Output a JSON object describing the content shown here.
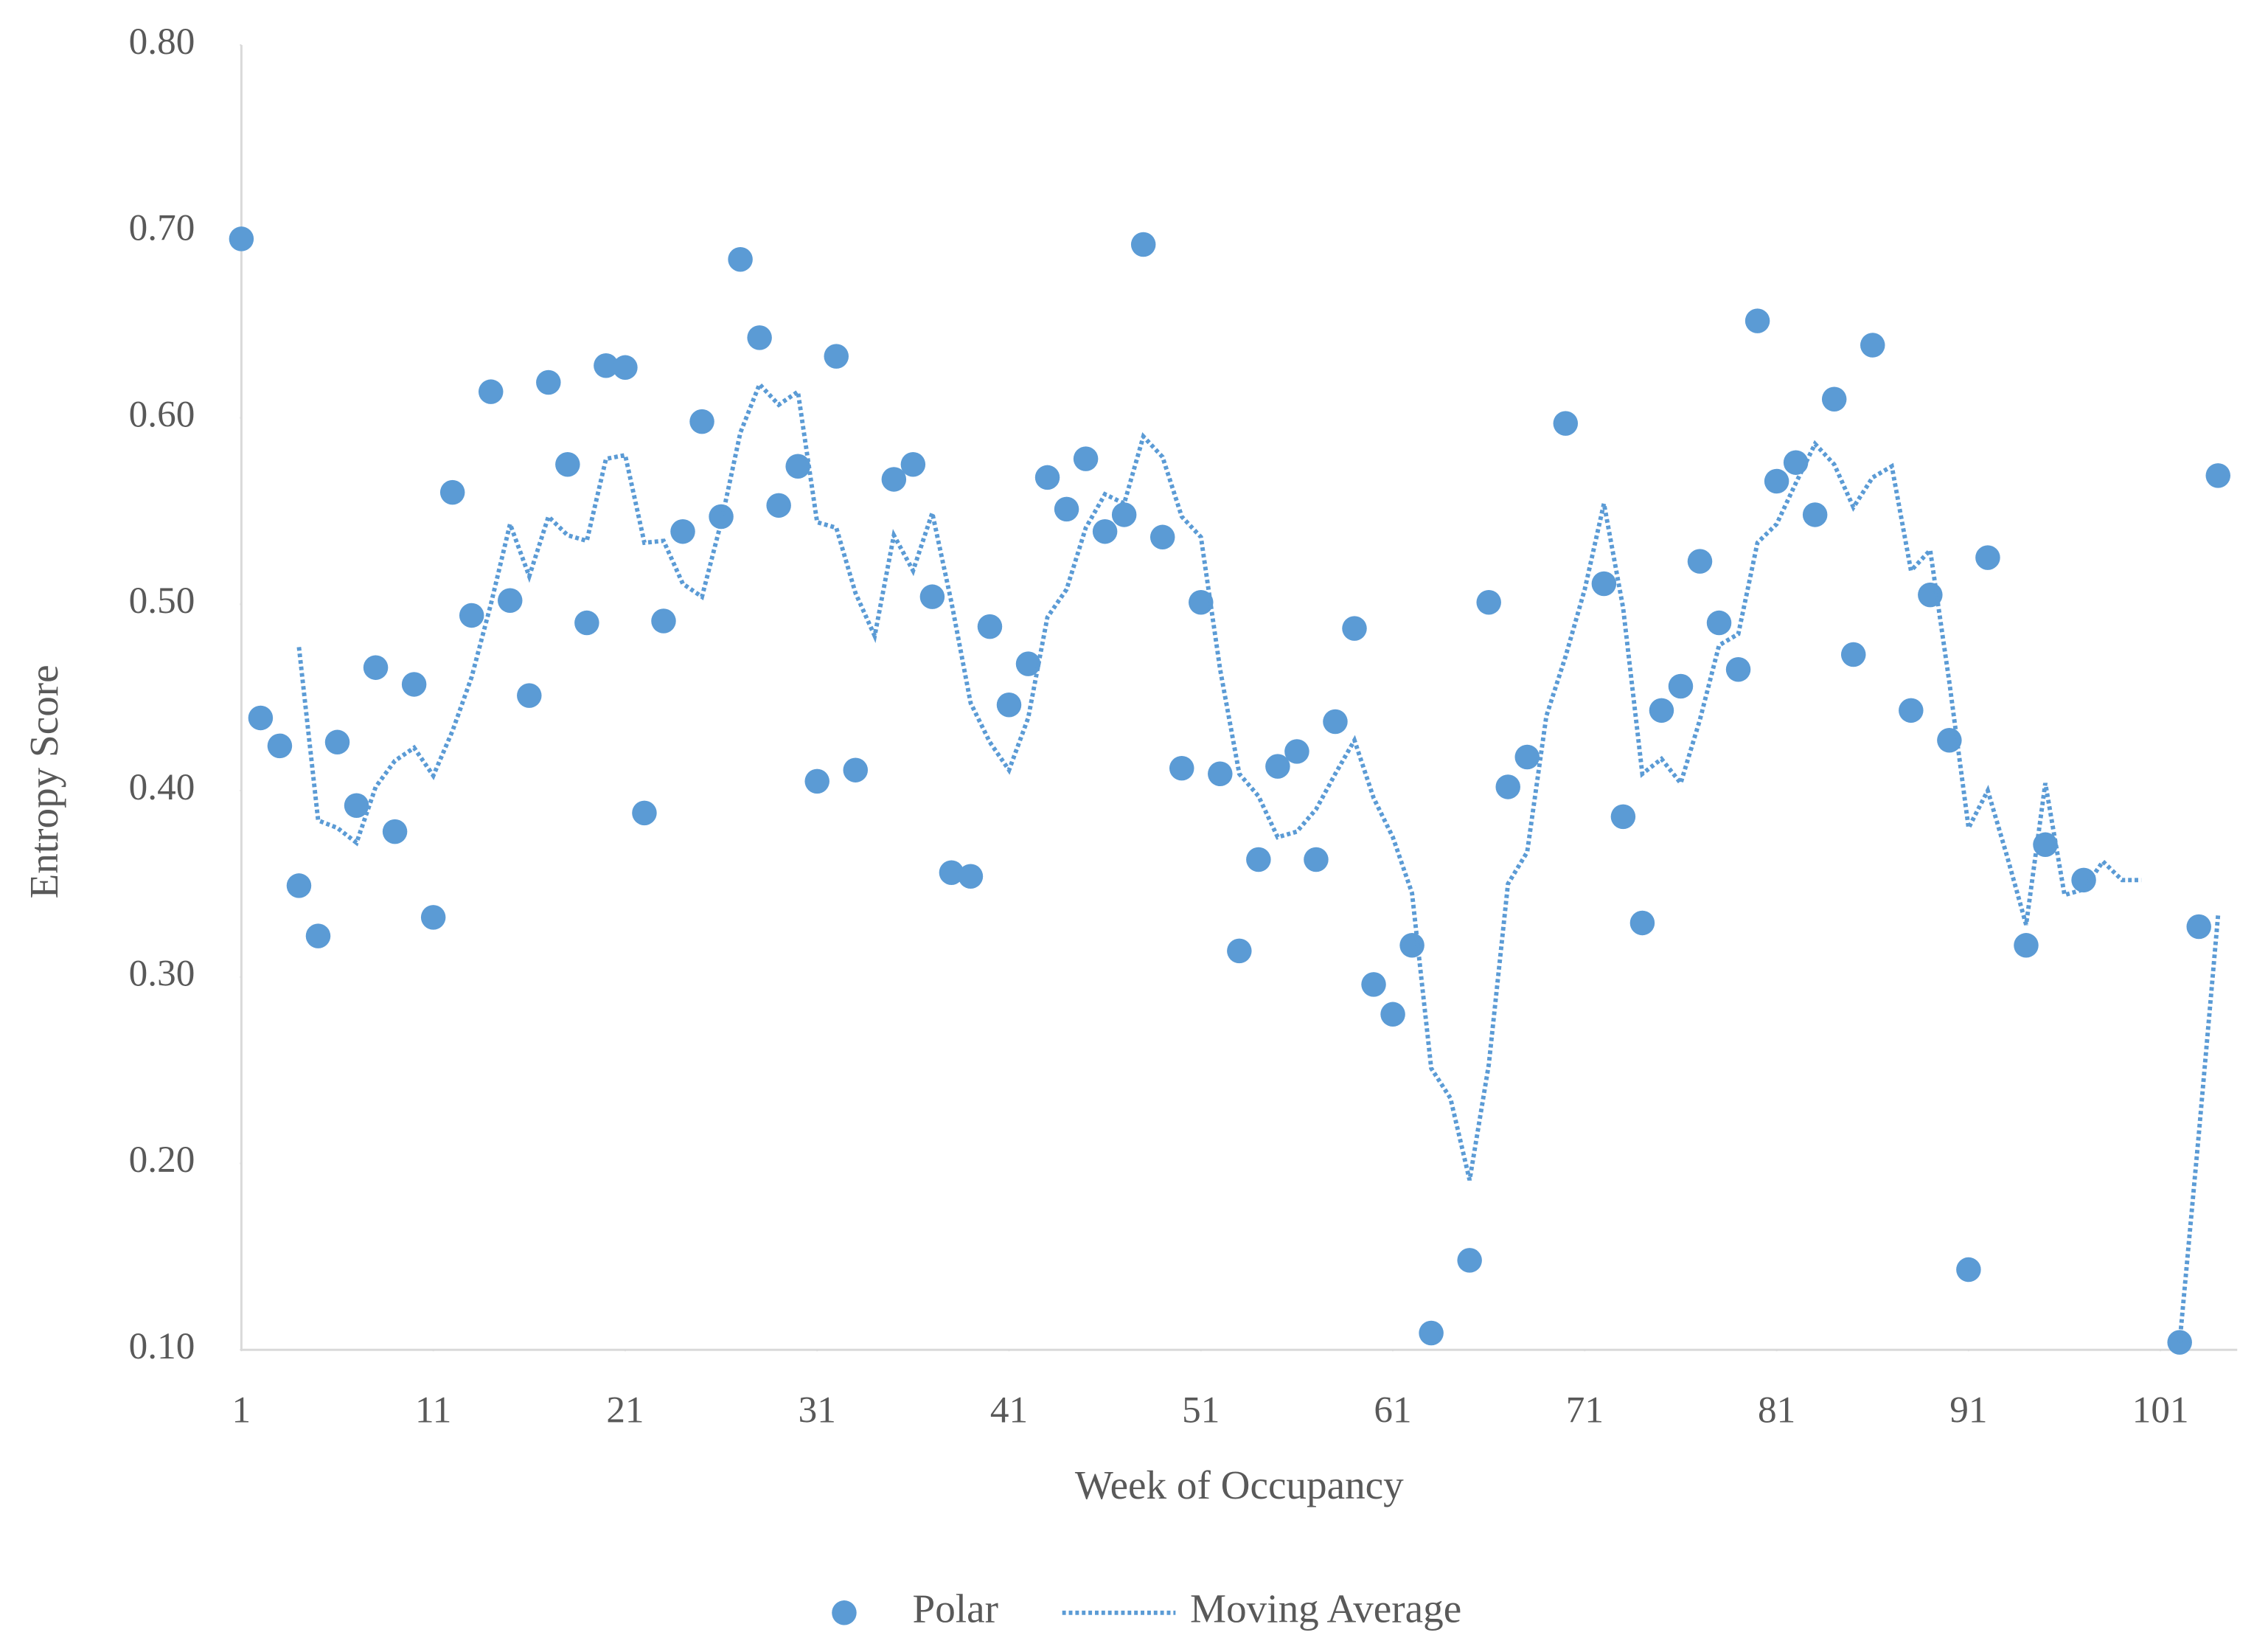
{
  "chart_data": {
    "type": "scatter",
    "x_label": "Week of Occupancy",
    "y_label": "Entropy Score",
    "x": [
      1,
      2,
      3,
      4,
      5,
      6,
      7,
      8,
      9,
      10,
      11,
      12,
      13,
      14,
      15,
      16,
      17,
      18,
      19,
      20,
      21,
      22,
      23,
      24,
      25,
      26,
      27,
      28,
      29,
      30,
      31,
      32,
      33,
      34,
      35,
      36,
      37,
      38,
      39,
      40,
      41,
      42,
      43,
      44,
      45,
      46,
      47,
      48,
      49,
      50,
      51,
      52,
      53,
      54,
      55,
      56,
      57,
      58,
      59,
      60,
      61,
      62,
      63,
      64,
      65,
      66,
      67,
      68,
      69,
      70,
      71,
      72,
      73,
      74,
      75,
      76,
      77,
      78,
      79,
      80,
      81,
      82,
      83,
      84,
      85,
      86,
      87,
      88,
      89,
      90,
      91,
      92,
      93,
      94,
      95,
      96,
      97,
      98,
      99,
      100,
      101,
      102,
      103,
      104
    ],
    "series": [
      {
        "name": "Polar",
        "kind": "scatter",
        "color": "#5b9bd5",
        "values": [
          0.696,
          0.439,
          0.424,
          0.349,
          0.322,
          0.426,
          0.392,
          0.466,
          0.378,
          0.457,
          0.332,
          0.56,
          0.494,
          0.614,
          0.502,
          0.451,
          0.619,
          0.575,
          0.49,
          0.628,
          0.627,
          0.388,
          0.491,
          0.539,
          0.598,
          0.547,
          0.685,
          0.643,
          0.553,
          0.574,
          0.405,
          0.633,
          0.411,
          null,
          0.567,
          0.575,
          0.504,
          0.356,
          0.354,
          0.488,
          0.446,
          0.468,
          0.568,
          0.551,
          0.578,
          0.539,
          0.548,
          0.693,
          0.536,
          0.412,
          0.501,
          0.409,
          0.314,
          0.363,
          0.413,
          0.421,
          0.363,
          0.437,
          0.487,
          0.296,
          0.28,
          0.317,
          0.109,
          null,
          0.148,
          0.501,
          0.402,
          0.418,
          null,
          0.597,
          null,
          0.511,
          0.386,
          0.329,
          0.443,
          0.456,
          0.523,
          0.49,
          0.465,
          0.652,
          0.566,
          0.576,
          0.548,
          0.61,
          0.473,
          0.639,
          null,
          0.443,
          0.505,
          0.427,
          0.143,
          0.525,
          null,
          0.317,
          0.371,
          null,
          0.352,
          null,
          null,
          null,
          null,
          0.104,
          0.327,
          0.569
        ]
      },
      {
        "name": "Moving Average",
        "kind": "line",
        "dash": "dotted",
        "color": "#5b9bd5",
        "values": [
          null,
          null,
          null,
          0.477,
          0.384,
          0.38,
          0.372,
          0.402,
          0.416,
          0.423,
          0.408,
          0.432,
          0.461,
          0.5,
          0.543,
          0.515,
          0.547,
          0.537,
          0.534,
          0.578,
          0.58,
          0.533,
          0.534,
          0.511,
          0.504,
          0.544,
          0.592,
          0.618,
          0.607,
          0.614,
          0.544,
          0.541,
          0.506,
          0.483,
          0.537,
          0.518,
          0.549,
          0.501,
          0.447,
          0.426,
          0.411,
          0.439,
          0.493,
          0.508,
          0.541,
          0.559,
          0.554,
          0.59,
          0.579,
          0.547,
          0.536,
          0.465,
          0.409,
          0.397,
          0.375,
          0.378,
          0.39,
          0.409,
          0.427,
          0.396,
          0.375,
          0.345,
          0.251,
          0.235,
          0.191,
          0.253,
          0.35,
          0.367,
          0.44,
          0.472,
          0.508,
          0.554,
          0.498,
          0.409,
          0.417,
          0.404,
          0.438,
          0.478,
          0.484,
          0.533,
          0.543,
          0.565,
          0.586,
          0.575,
          0.552,
          0.568,
          0.574,
          0.518,
          0.529,
          0.458,
          0.38,
          0.4,
          0.365,
          0.328,
          0.404,
          0.344,
          0.347,
          0.362,
          0.352,
          0.352,
          null,
          0.104,
          0.216,
          0.333
        ]
      }
    ],
    "xlim": [
      1,
      105
    ],
    "xticks": [
      1,
      11,
      21,
      31,
      41,
      51,
      61,
      71,
      81,
      91,
      101
    ],
    "ylim": [
      0.1,
      0.8
    ],
    "yticks": [
      {
        "value": 0.1,
        "label": "0.10"
      },
      {
        "value": 0.2,
        "label": "0.20"
      },
      {
        "value": 0.3,
        "label": "0.30"
      },
      {
        "value": 0.4,
        "label": "0.40"
      },
      {
        "value": 0.5,
        "label": "0.50"
      },
      {
        "value": 0.6,
        "label": "0.60"
      },
      {
        "value": 0.7,
        "label": "0.70"
      },
      {
        "value": 0.8,
        "label": "0.80"
      }
    ],
    "legend": "bottom"
  }
}
